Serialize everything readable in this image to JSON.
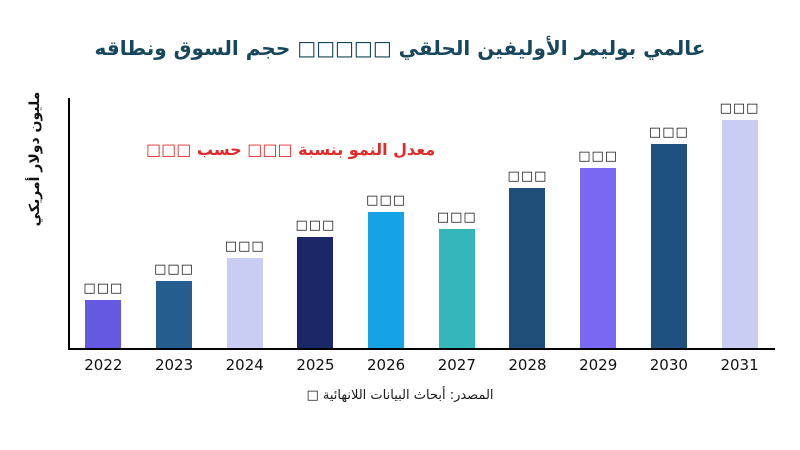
{
  "title": "عالمي بوليمر الأوليفين الحلقي □□□□□ حجم السوق ونطاقه",
  "ylabel": "مليون دولار أمريكي",
  "annotation": "معدل النمو بنسبة □□□ حسب □□□",
  "source": "المصدر: أبحاث البيانات اللانهائية □",
  "colors": {
    "title_text": "#17475c",
    "annotation_text": "#e02b2b",
    "axis": "#000000",
    "background": "#ffffff"
  },
  "chart_data": {
    "type": "bar",
    "title": "عالمي بوليمر الأوليفين الحلقي □□□□□ حجم السوق ونطاقه",
    "xlabel": "",
    "ylabel": "مليون دولار أمريكي",
    "legend": "none",
    "grid": false,
    "categories": [
      "2022",
      "2023",
      "2024",
      "2025",
      "2026",
      "2027",
      "2028",
      "2029",
      "2030",
      "2031"
    ],
    "values": [
      50,
      69,
      92,
      113,
      138,
      121,
      162,
      182,
      206,
      230
    ],
    "value_units": "relative bar height in px; numeric data labels are illegible tofu glyphs in source image",
    "value_labels": [
      "□□□",
      "□□□",
      "□□□",
      "□□□",
      "□□□",
      "□□□",
      "□□□",
      "□□□",
      "□□□",
      "□□□"
    ],
    "bar_colors": [
      "#6459e0",
      "#265d8f",
      "#c9cdf3",
      "#1b2766",
      "#16a3e6",
      "#34b6ba",
      "#1f4e79",
      "#7b68f2",
      "#20507e",
      "#c9cdf3"
    ],
    "annotation": "معدل النمو بنسبة □□□ حسب □□□"
  }
}
